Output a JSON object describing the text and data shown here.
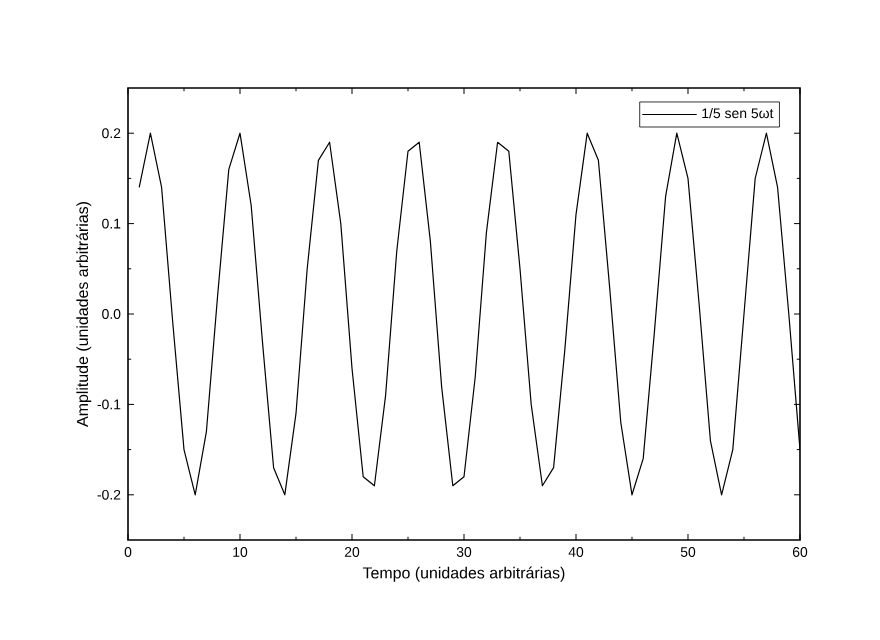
{
  "chart_data": {
    "type": "line",
    "xlabel": "Tempo (unidades arbitrárias)",
    "ylabel": "Amplitude (unidades arbitrárias)",
    "xlim": [
      0,
      60
    ],
    "xticks": [
      0,
      10,
      20,
      30,
      40,
      50,
      60
    ],
    "ylim": [
      -0.25,
      0.25
    ],
    "yticks": [
      -0.2,
      -0.1,
      {
        "value": 0,
        "label": "0.0"
      },
      0.1,
      0.2
    ],
    "legend": "top right",
    "grid": false,
    "marker": "none",
    "line_style": "solid",
    "x": [
      1,
      2,
      3,
      4,
      5,
      6,
      7,
      8,
      9,
      10,
      11,
      12,
      13,
      14,
      15,
      16,
      17,
      18,
      19,
      20,
      21,
      22,
      23,
      24,
      25,
      26,
      27,
      28,
      29,
      30,
      31,
      32,
      33,
      34,
      35,
      36,
      37,
      38,
      39,
      40,
      41,
      42,
      43,
      44,
      45,
      46,
      47,
      48,
      49,
      50,
      51,
      52,
      53,
      54,
      55,
      56,
      57,
      58,
      59,
      60
    ],
    "series": [
      {
        "name": "1/5 sen 5ωt",
        "color": "#000000",
        "values": [
          0.14,
          0.2,
          0.14,
          -0.01,
          -0.15,
          -0.2,
          -0.13,
          0.02,
          0.16,
          0.2,
          0.12,
          -0.03,
          -0.17,
          -0.2,
          -0.11,
          0.05,
          0.17,
          0.19,
          0.1,
          -0.06,
          -0.18,
          -0.19,
          -0.09,
          0.07,
          0.18,
          0.19,
          0.08,
          -0.08,
          -0.19,
          -0.18,
          -0.07,
          0.09,
          0.19,
          0.18,
          0.05,
          -0.1,
          -0.19,
          -0.17,
          -0.04,
          0.11,
          0.2,
          0.17,
          0.03,
          -0.12,
          -0.2,
          -0.16,
          -0.02,
          0.13,
          0.2,
          0.15,
          0.01,
          -0.14,
          -0.2,
          -0.15,
          0.0,
          0.15,
          0.2,
          0.14,
          0.0,
          -0.15
        ]
      }
    ]
  }
}
